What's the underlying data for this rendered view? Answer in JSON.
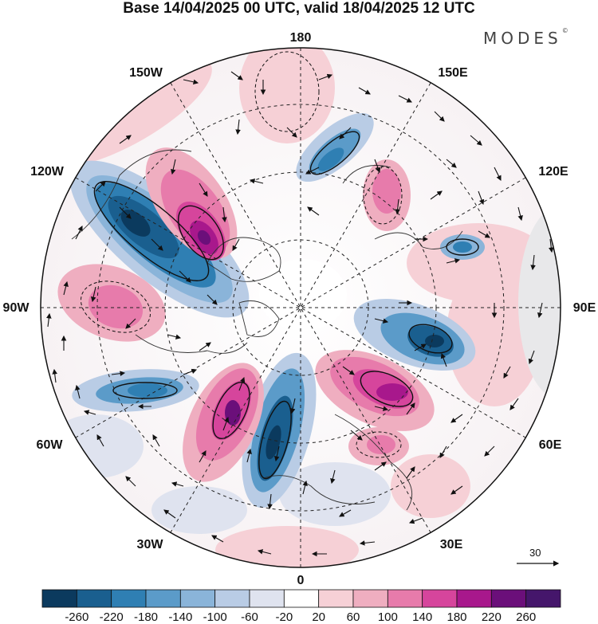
{
  "header": {
    "title": "Base 14/04/2025 00 UTC, valid 18/04/2025 12 UTC",
    "brand": "MODES",
    "brand_mark": "©"
  },
  "map": {
    "projection": "north-polar-stereographic",
    "longitude_labels": {
      "top": "180",
      "bottom": "0",
      "left": "90W",
      "right": "90E",
      "upper_left_1": "150W",
      "upper_left_2": "120W",
      "upper_right_1": "150E",
      "upper_right_2": "120E",
      "lower_left_1": "60W",
      "lower_left_2": "30W",
      "lower_right_1": "60E",
      "lower_right_2": "30E"
    },
    "reference_vector_label": "30"
  },
  "colorbar": {
    "labels": [
      "-260",
      "-220",
      "-180",
      "-140",
      "-100",
      "-60",
      "-20",
      "20",
      "60",
      "100",
      "140",
      "180",
      "220",
      "260"
    ],
    "colors": [
      "#0b3a5e",
      "#1a5f8f",
      "#2f7fb3",
      "#5b9bc9",
      "#8ab4d9",
      "#b9cce5",
      "#dfe3ef",
      "#ffffff",
      "#f6d0d6",
      "#efaec0",
      "#e77bab",
      "#d6459c",
      "#a8188c",
      "#6b0f7a",
      "#45166b"
    ]
  }
}
